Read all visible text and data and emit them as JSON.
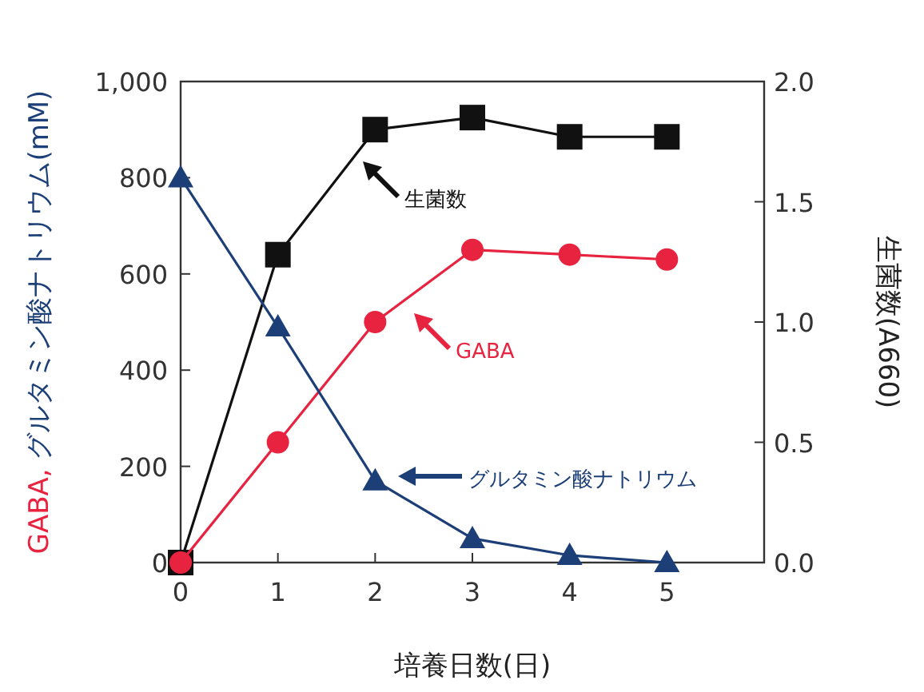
{
  "chart_data": {
    "type": "line",
    "xlabel": "培養日数(日)",
    "ylabel": "GABA, グルタミン酸ナトリウム(mM)",
    "y2label": "生菌数(A660)",
    "x": [
      0,
      1,
      2,
      3,
      4,
      5
    ],
    "xlim": [
      0,
      6
    ],
    "xticks": [
      0,
      1,
      2,
      3,
      4,
      5
    ],
    "ylim": [
      0,
      1000
    ],
    "yticks": [
      0,
      200,
      400,
      600,
      {
        "value": 800,
        "label": "800"
      },
      {
        "value": 1000,
        "label": "1,000"
      }
    ],
    "y2lim": [
      0,
      2
    ],
    "y2ticks": [
      {
        "value": 0,
        "label": "0.0"
      },
      {
        "value": 0.5,
        "label": "0.5"
      },
      {
        "value": 1,
        "label": "1.0"
      },
      {
        "value": 1.5,
        "label": "1.5"
      },
      {
        "value": 2,
        "label": "2.0"
      }
    ],
    "grid": false,
    "series": [
      {
        "color": "#111111",
        "axis": "y2",
        "marker": "square",
        "values": [
          0,
          1.28,
          1.8,
          1.85,
          1.77,
          1.77
        ]
      },
      {
        "color": "#e8233f",
        "marker": "circle",
        "values": [
          0,
          250,
          500,
          650,
          640,
          630
        ]
      },
      {
        "color": "#1c3f78",
        "marker": "triangle",
        "values": [
          800,
          490,
          170,
          50,
          15,
          0
        ]
      }
    ],
    "annotations": [
      "生菌数",
      "GABA",
      "グルタミン酸ナトリウム"
    ]
  }
}
